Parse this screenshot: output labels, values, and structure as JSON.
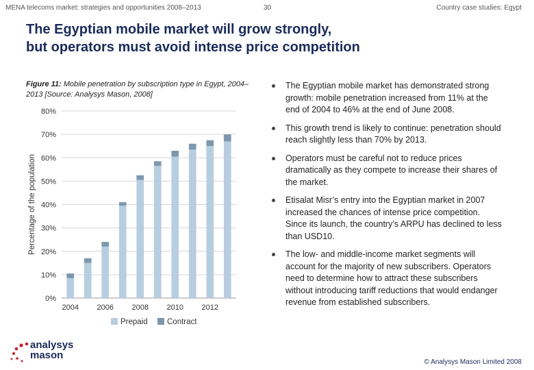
{
  "header": {
    "left": "MENA telecoms market: strategies and opportunities 2008–2013",
    "page_number": "30",
    "right": "Country case studies: Egypt"
  },
  "title_line1": "The Egyptian mobile market will grow strongly,",
  "title_line2": "but operators must avoid intense price competition",
  "figure_label": "Figure 11:",
  "figure_caption": " Mobile penetration by subscription type in Egypt, 2004–2013 [Source: Analysys Mason, 2008]",
  "bullets": [
    "The Egyptian mobile market has demonstrated strong growth: mobile penetration increased from 11% at the end of 2004 to 46% at the end of June 2008.",
    "This growth trend is likely to continue: penetration should reach slightly less than 70% by 2013.",
    "Operators must be careful not to reduce prices dramatically as they compete to increase their shares of the market.",
    "Etisalat Misr’s entry into the Egyptian market in 2007 increased the chances of intense price competition. Since its launch, the country’s ARPU has declined to less than USD10.",
    "The low- and middle-income market segments will account for the majority of new subscribers. Operators need to determine how to attract these subscribers without introducing tariff reductions that would endanger revenue from established subscribers."
  ],
  "logo": {
    "line1": "analysys",
    "line2": "mason"
  },
  "copyright": "© Analysys Mason Limited 2008",
  "colors": {
    "prepaid": "#b8cde0",
    "contract": "#7d98ae",
    "title": "#1a2a5a"
  },
  "chart_data": {
    "type": "bar",
    "stacked": true,
    "categories": [
      "2004",
      "2005",
      "2006",
      "2007",
      "2008",
      "2009",
      "2010",
      "2011",
      "2012",
      "2013"
    ],
    "x_tick_labels": [
      "2004",
      "2006",
      "2008",
      "2010",
      "2012"
    ],
    "series": [
      {
        "name": "Prepaid",
        "values": [
          8.5,
          15,
          22,
          39.5,
          50.5,
          56.5,
          60.5,
          63.5,
          65,
          67
        ]
      },
      {
        "name": "Contract",
        "values": [
          2,
          2,
          2,
          1.5,
          2,
          2,
          2.5,
          2.5,
          2.5,
          3
        ]
      }
    ],
    "ylabel": "Percentage of the population",
    "ylim": [
      0,
      80
    ],
    "y_ticks": [
      "0%",
      "10%",
      "20%",
      "30%",
      "40%",
      "50%",
      "60%",
      "70%",
      "80%"
    ],
    "grid": true,
    "legend": "bottom"
  }
}
